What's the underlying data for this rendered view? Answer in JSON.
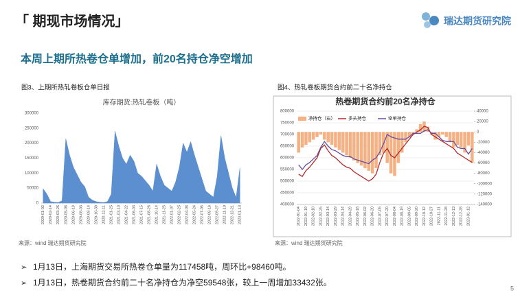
{
  "header": {
    "title": "「 期现市场情况」",
    "logo": "瑞达期货研究院",
    "subtitle": "本周上期所热卷仓单增加，前20名持仓净空增加",
    "page": "5"
  },
  "bullets": [
    "1月13日，上海期货交易所热卷仓单量为117458吨，周环比+98460吨。",
    "1月13日，热卷期货合约前二十名净持仓为净空59548张，较上一周增加33432张。"
  ],
  "chart_data": [
    {
      "type": "area",
      "caption": "图3、上期所热轧卷板仓单日报",
      "title": "库存期货:热轧卷板（吨）",
      "source": "来源：wind  瑞达期货研究院",
      "color": "#5b8fd0",
      "categories": [
        "2020-01-02",
        null,
        "2020-02-14",
        null,
        "2020-03-26",
        null,
        "2020-05-08",
        null,
        "2020-06-19",
        null,
        "2020-08-03",
        null,
        "2020-09-14",
        null,
        "2020-10-30",
        null,
        "2020-12-11",
        null,
        "2021-01-25",
        null,
        "2021-03-10",
        null,
        "2021-04-22",
        null,
        "2021-06-03",
        null,
        "2021-07-15",
        null,
        "2021-08-26",
        null,
        "2021-10-14",
        null,
        "2021-11-25",
        null,
        "2022-01-07",
        null,
        "2022-02-25",
        null,
        "2022-04-08",
        null,
        "2022-05-24",
        null,
        "2022-07-05",
        null,
        "2022-08-16",
        null,
        "2022-09-27",
        null,
        "2022-11-10",
        null,
        "2022-12-21",
        null,
        "2023-01-13"
      ],
      "values": [
        48000,
        30000,
        5000,
        3000,
        2000,
        8000,
        215000,
        160000,
        120000,
        95000,
        70000,
        55000,
        20000,
        10000,
        5000,
        3000,
        2000,
        5000,
        30000,
        240000,
        190000,
        150000,
        130000,
        160000,
        140000,
        100000,
        90000,
        75000,
        60000,
        40000,
        130000,
        90000,
        60000,
        50000,
        40000,
        70000,
        120000,
        200000,
        170000,
        205000,
        160000,
        120000,
        80000,
        40000,
        30000,
        20000,
        90000,
        225000,
        150000,
        100000,
        50000,
        18998,
        117458
      ],
      "ylim": [
        0,
        300000
      ],
      "yticks": [
        0,
        50000,
        100000,
        150000,
        200000,
        250000,
        300000
      ],
      "grid": false
    },
    {
      "type": "combo",
      "caption": "图4、热轧卷板期货合约前二十名净持仓",
      "title": "热卷期货合约前20名净持仓",
      "source": "来源：wind  瑞达期货研究院",
      "categories": [
        "2022-01-04",
        null,
        "2022-01-19",
        null,
        "2022-02-10",
        null,
        "2022-02-25",
        null,
        "2022-03-14",
        null,
        "2022-03-29",
        null,
        "2022-04-14",
        null,
        "2022-04-29",
        null,
        "2022-05-18",
        null,
        "2022-06-02",
        null,
        "2022-06-20",
        null,
        "2022-07-05",
        null,
        "2022-07-20",
        null,
        "2022-08-04",
        null,
        "2022-08-19",
        null,
        "2022-09-05",
        null,
        "2022-09-20",
        null,
        "2022-10-12",
        null,
        "2022-10-27",
        null,
        "2022-11-11",
        null,
        "2022-11-28",
        null,
        "2022-12-13",
        null,
        "2022-12-28",
        null,
        "2023-01-12",
        null
      ],
      "series": [
        {
          "name": "净持仓（右）",
          "kind": "bar",
          "axis": "y2",
          "color": "#f4b183",
          "values": [
            -40000,
            -30000,
            -25000,
            -20000,
            -15000,
            -10000,
            -5000,
            -15000,
            -20000,
            -25000,
            -30000,
            -35000,
            -40000,
            -45000,
            -50000,
            -55000,
            -60000,
            -65000,
            -70000,
            -75000,
            -80000,
            -70000,
            -45000,
            -40000,
            -60000,
            -80000,
            -85000,
            -60000,
            -40000,
            -20000,
            -10000,
            -5000,
            5000,
            15000,
            20000,
            10000,
            -5000,
            -15000,
            -10000,
            -5000,
            -10000,
            -20000,
            -30000,
            -25000,
            -30000,
            -40000,
            -26116,
            -59548
          ]
        },
        {
          "name": "多头持仓",
          "kind": "line",
          "color": "#b22a2a",
          "values": [
            530000,
            520000,
            545000,
            560000,
            580000,
            600000,
            640000,
            655000,
            630000,
            610000,
            600000,
            585000,
            570000,
            560000,
            555000,
            540000,
            530000,
            520000,
            510000,
            500000,
            510000,
            530000,
            580000,
            620000,
            640000,
            610000,
            600000,
            620000,
            640000,
            660000,
            680000,
            700000,
            710000,
            720000,
            735000,
            730000,
            700000,
            690000,
            680000,
            670000,
            660000,
            650000,
            640000,
            620000,
            610000,
            600000,
            590000,
            580000
          ]
        },
        {
          "name": "空单持仓",
          "kind": "line",
          "color": "#6a4c9c",
          "values": [
            570000,
            550000,
            570000,
            580000,
            595000,
            610000,
            645000,
            670000,
            650000,
            635000,
            630000,
            620000,
            610000,
            605000,
            605000,
            595000,
            590000,
            585000,
            580000,
            575000,
            590000,
            600000,
            625000,
            660000,
            700000,
            690000,
            685000,
            680000,
            680000,
            680000,
            690000,
            705000,
            705000,
            705000,
            715000,
            720000,
            705000,
            705000,
            690000,
            675000,
            670000,
            670000,
            670000,
            645000,
            640000,
            640000,
            616116,
            639548
          ]
        }
      ],
      "ylim": [
        400000,
        800000
      ],
      "yticks": [
        400000,
        450000,
        500000,
        550000,
        600000,
        650000,
        700000,
        750000,
        800000
      ],
      "y2lim": [
        -140000,
        40000
      ],
      "y2ticks": [
        40000,
        20000,
        0,
        -20000,
        -40000,
        -60000,
        -80000,
        -100000,
        -120000,
        -140000
      ],
      "grid": true
    }
  ]
}
